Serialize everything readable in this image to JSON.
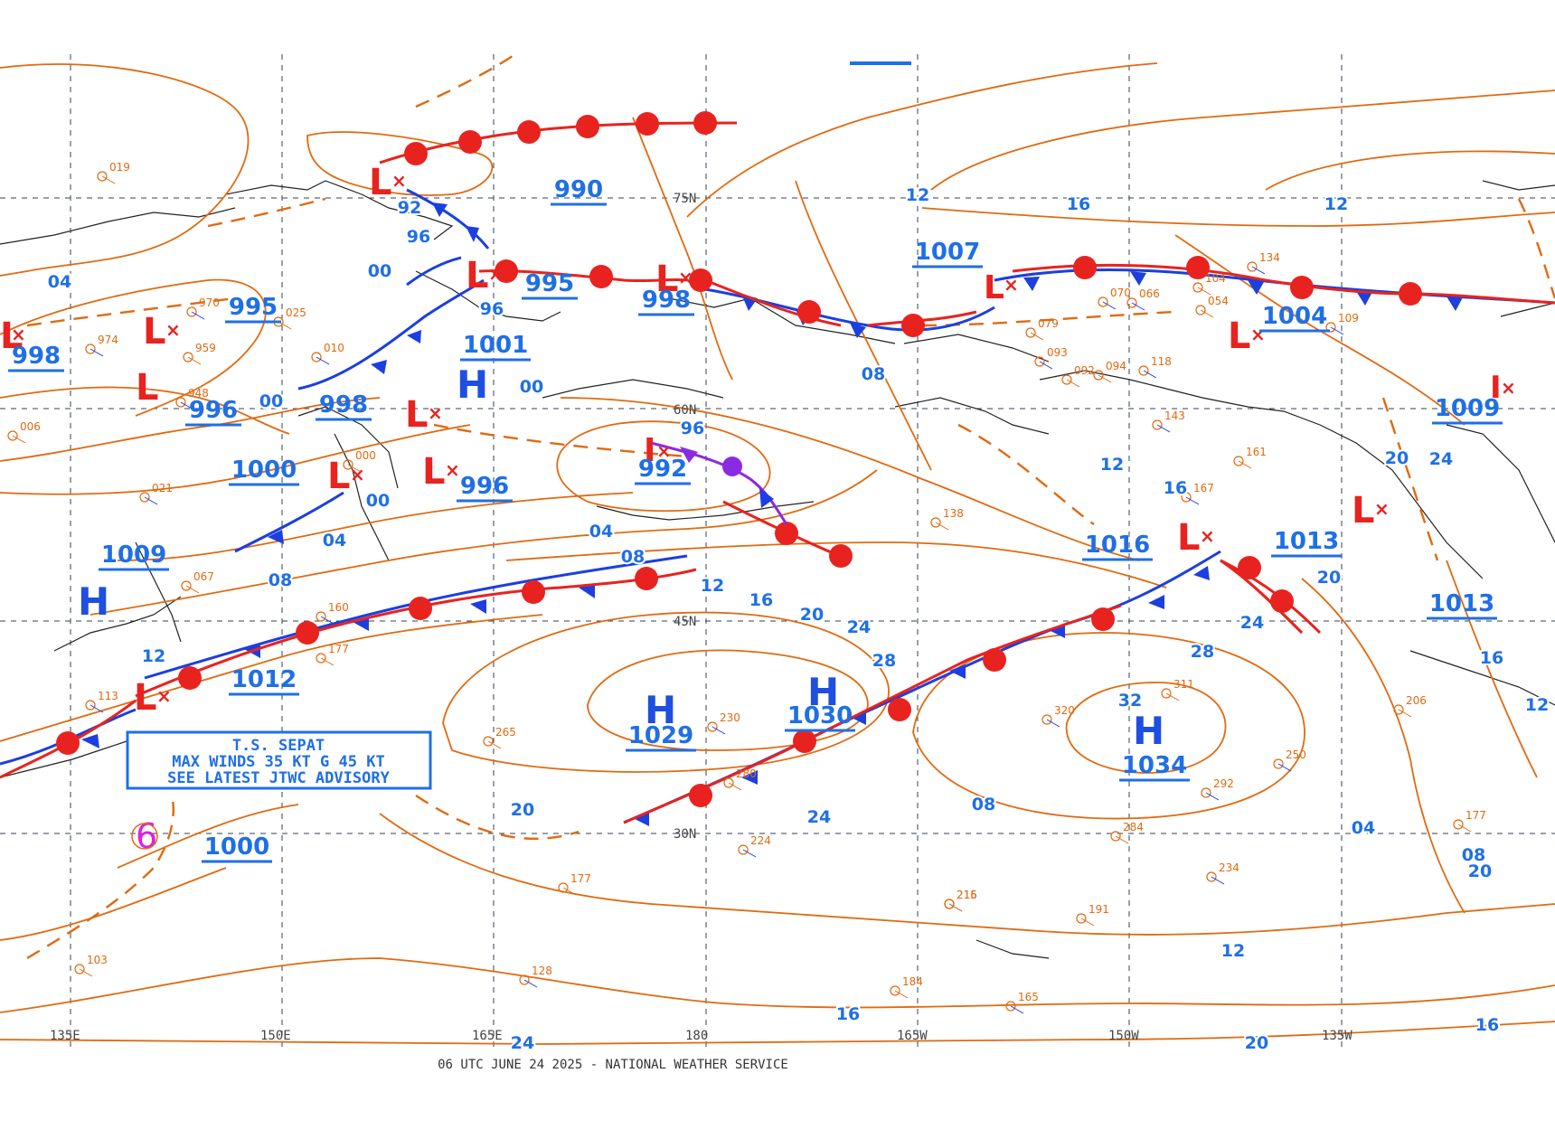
{
  "footer": "06 UTC JUNE 24 2025 - NATIONAL WEATHER SERVICE",
  "colors": {
    "isobar": "#e06a10",
    "cold_front": "#1b3fe0",
    "warm_front": "#e8231f",
    "occluded": "#8a2be2",
    "label": "#1f6fe6",
    "low": "#e8231f",
    "high": "#1f4fe0",
    "coast": "#222222",
    "grid": "#334155"
  },
  "grid_labels": {
    "lon": [
      "135E",
      "150E",
      "165E",
      "180",
      "165W",
      "150W",
      "135W"
    ],
    "lat": [
      "75N",
      "60N",
      "45N",
      "30N"
    ]
  },
  "pressure_centers": [
    {
      "type": "L",
      "value": "990"
    },
    {
      "type": "L",
      "value": "995"
    },
    {
      "type": "L",
      "value": "995"
    },
    {
      "type": "L",
      "value": "998"
    },
    {
      "type": "L",
      "value": "996"
    },
    {
      "type": "L",
      "value": "998"
    },
    {
      "type": "L",
      "value": "996"
    },
    {
      "type": "L",
      "value": "998"
    },
    {
      "type": "L",
      "value": "1000"
    },
    {
      "type": "L",
      "value": "992"
    },
    {
      "type": "L",
      "value": "1007"
    },
    {
      "type": "L",
      "value": "1004"
    },
    {
      "type": "L",
      "value": "1009"
    },
    {
      "type": "L",
      "value": "1016"
    },
    {
      "type": "L",
      "value": "1013"
    },
    {
      "type": "L",
      "value": "1013"
    },
    {
      "type": "H",
      "value": "1001"
    },
    {
      "type": "H",
      "value": "1009"
    },
    {
      "type": "L",
      "value": "1012"
    },
    {
      "type": "H",
      "value": "1029"
    },
    {
      "type": "H",
      "value": "1030"
    },
    {
      "type": "H",
      "value": "1034"
    },
    {
      "type": "L",
      "value": "1000"
    }
  ],
  "isobar_labels": [
    "92",
    "96",
    "00",
    "04",
    "00",
    "96",
    "00",
    "04",
    "08",
    "12",
    "16",
    "20",
    "24",
    "28",
    "32",
    "12",
    "08",
    "04",
    "00",
    "96",
    "08",
    "12",
    "16",
    "20",
    "24",
    "28",
    "16",
    "12",
    "20",
    "24",
    "08",
    "04",
    "08",
    "12",
    "16",
    "20",
    "24",
    "20",
    "16",
    "12",
    "16",
    "12",
    "20",
    "24"
  ],
  "advisory": {
    "line1": "T.S. SEPAT",
    "line2": "MAX WINDS 35 KT G 45 KT",
    "line3": "SEE LATEST JTWC ADVISORY"
  },
  "station_obs": [
    "019",
    "970",
    "025",
    "974",
    "959",
    "948",
    "006",
    "010",
    "000",
    "021",
    "067",
    "160",
    "177",
    "113",
    "265",
    "224",
    "177",
    "128",
    "092",
    "118",
    "103",
    "230",
    "280",
    "215",
    "191",
    "070",
    "094",
    "093",
    "079",
    "143",
    "161",
    "167",
    "138",
    "109",
    "206",
    "250",
    "177",
    "320",
    "311",
    "292",
    "284",
    "234",
    "216",
    "165",
    "184",
    "066",
    "104",
    "134",
    "054"
  ]
}
